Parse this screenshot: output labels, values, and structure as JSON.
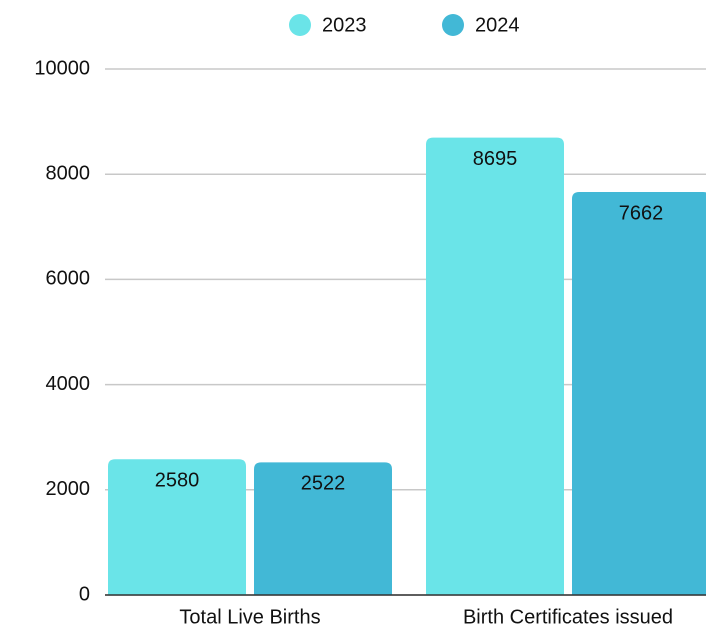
{
  "chart_data": {
    "type": "bar",
    "categories": [
      "Total Live Births",
      "Birth Certificates issued"
    ],
    "series": [
      {
        "name": "2023",
        "color": "#6ae4e8",
        "values": [
          2580,
          8695
        ]
      },
      {
        "name": "2024",
        "color": "#42b8d6",
        "values": [
          2522,
          7662
        ]
      }
    ],
    "ylim": [
      0,
      10000
    ],
    "yticks": [
      0,
      2000,
      4000,
      6000,
      8000,
      10000
    ],
    "grid": true,
    "legend": "top"
  }
}
